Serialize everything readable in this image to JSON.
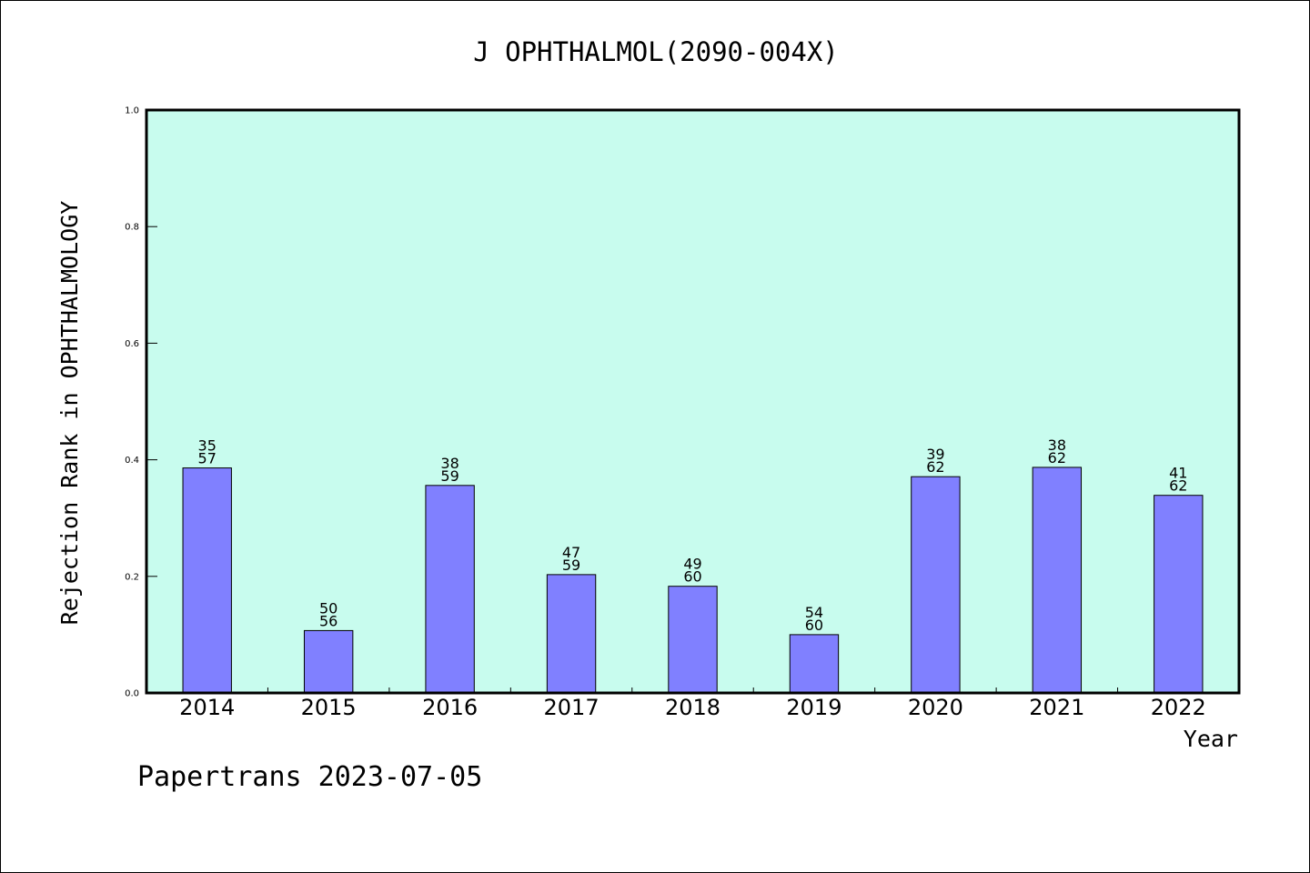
{
  "chart_data": {
    "type": "bar",
    "title": "J OPHTHALMOL(2090-004X)",
    "xlabel": "Year",
    "ylabel": "Rejection Rank in OPHTHALMOLOGY",
    "ylim": [
      0,
      1.0
    ],
    "yticks": [
      "0.0",
      "0.2",
      "0.4",
      "0.6",
      "0.8",
      "1.0"
    ],
    "grid": false,
    "plot_background": "#c8fcee",
    "bar_color": "#8080ff",
    "categories": [
      "2014",
      "2015",
      "2016",
      "2017",
      "2018",
      "2019",
      "2020",
      "2021",
      "2022"
    ],
    "values": [
      0.386,
      0.107,
      0.356,
      0.203,
      0.183,
      0.1,
      0.371,
      0.387,
      0.339
    ],
    "annotations": [
      [
        "35",
        "57"
      ],
      [
        "50",
        "56"
      ],
      [
        "38",
        "59"
      ],
      [
        "47",
        "59"
      ],
      [
        "49",
        "60"
      ],
      [
        "54",
        "60"
      ],
      [
        "39",
        "62"
      ],
      [
        "38",
        "62"
      ],
      [
        "41",
        "62"
      ]
    ]
  },
  "footer": "Papertrans 2023-07-05"
}
